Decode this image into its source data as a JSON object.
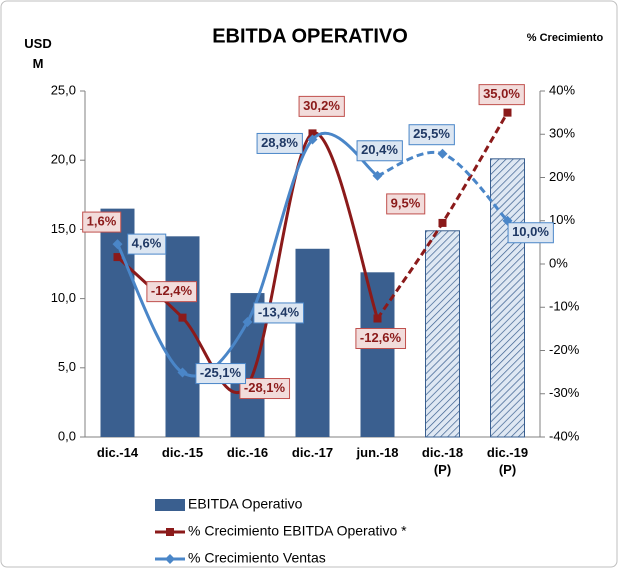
{
  "chart_data": {
    "type": "bar_line",
    "title": "EBITDA OPERATIVO",
    "y_label": "USD M",
    "y2_label": "% Crecimiento",
    "categories": [
      "dic.-14",
      "dic.-15",
      "dic.-16",
      "dic.-17",
      "jun.-18",
      "dic.-18 (P)",
      "dic.-19 (P)"
    ],
    "ylim": [
      0,
      25
    ],
    "yticks": [
      {
        "value": 0,
        "label": "0,0"
      },
      {
        "value": 5,
        "label": "5,0"
      },
      {
        "value": 10,
        "label": "10,0"
      },
      {
        "value": 15,
        "label": "15,0"
      },
      {
        "value": 20,
        "label": "20,0"
      },
      {
        "value": 25,
        "label": "25,0"
      }
    ],
    "y2lim": [
      -40,
      40
    ],
    "y2ticks": [
      {
        "value": -40,
        "label": "-40%"
      },
      {
        "value": -30,
        "label": "-30%"
      },
      {
        "value": -20,
        "label": "-20%"
      },
      {
        "value": -10,
        "label": "-10%"
      },
      {
        "value": 0,
        "label": "0%"
      },
      {
        "value": 10,
        "label": "10%"
      },
      {
        "value": 20,
        "label": "20%"
      },
      {
        "value": 30,
        "label": "30%"
      },
      {
        "value": 40,
        "label": "40%"
      }
    ],
    "dashed_from": 4,
    "series": [
      {
        "name": "EBITDA Operativo",
        "type": "bar",
        "color": "#3a5f8f",
        "values": [
          16.5,
          14.5,
          10.4,
          13.6,
          11.9,
          14.9,
          20.1
        ],
        "hatched": [
          false,
          false,
          false,
          false,
          false,
          true,
          true
        ]
      },
      {
        "name": "% Crecimiento EBITDA Operativo *",
        "type": "line",
        "axis": "y2",
        "color": "#8b1a1a",
        "marker": "square",
        "values": [
          1.6,
          -12.4,
          -28.1,
          30.2,
          -12.6,
          9.5,
          35.0
        ],
        "value_labels": [
          "1,6%",
          "-12,4%",
          "-28,1%",
          "30,2%",
          "-12,6%",
          "9,5%",
          "35,0%"
        ]
      },
      {
        "name": "% Crecimiento Ventas",
        "type": "line",
        "axis": "y2",
        "color": "#4a86c8",
        "marker": "diamond",
        "values": [
          4.6,
          -25.1,
          -13.4,
          28.8,
          20.4,
          25.5,
          10.0
        ],
        "value_labels": [
          "4,6%",
          "-25,1%",
          "-13,4%",
          "28,8%",
          "20,4%",
          "25,5%",
          "10,0%"
        ]
      }
    ]
  }
}
